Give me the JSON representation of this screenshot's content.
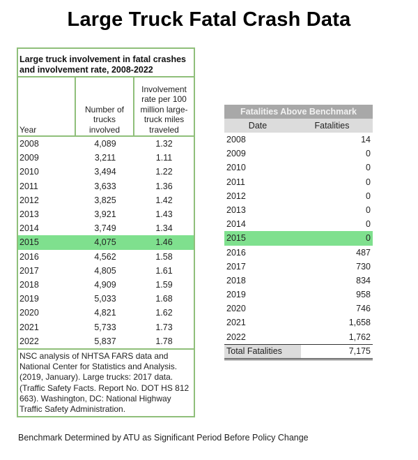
{
  "title": "Large Truck Fatal Crash Data",
  "left_table": {
    "caption": "Large truck involvement in fatal crashes and involvement rate, 2008-2022",
    "headers": {
      "year": "Year",
      "trucks": "Number of trucks involved",
      "rate": "Involvement rate per 100 million large-truck miles traveled"
    },
    "highlight_year": "2015",
    "highlight_color": "#7fe08e",
    "border_color": "#8fbf7a",
    "rows": [
      {
        "year": "2008",
        "trucks": "4,089",
        "rate": "1.32"
      },
      {
        "year": "2009",
        "trucks": "3,211",
        "rate": "1.11"
      },
      {
        "year": "2010",
        "trucks": "3,494",
        "rate": "1.22"
      },
      {
        "year": "2011",
        "trucks": "3,633",
        "rate": "1.36"
      },
      {
        "year": "2012",
        "trucks": "3,825",
        "rate": "1.42"
      },
      {
        "year": "2013",
        "trucks": "3,921",
        "rate": "1.43"
      },
      {
        "year": "2014",
        "trucks": "3,749",
        "rate": "1.34"
      },
      {
        "year": "2015",
        "trucks": "4,075",
        "rate": "1.46"
      },
      {
        "year": "2016",
        "trucks": "4,562",
        "rate": "1.58"
      },
      {
        "year": "2017",
        "trucks": "4,805",
        "rate": "1.61"
      },
      {
        "year": "2018",
        "trucks": "4,909",
        "rate": "1.59"
      },
      {
        "year": "2019",
        "trucks": "5,033",
        "rate": "1.68"
      },
      {
        "year": "2020",
        "trucks": "4,821",
        "rate": "1.62"
      },
      {
        "year": "2021",
        "trucks": "5,733",
        "rate": "1.73"
      },
      {
        "year": "2022",
        "trucks": "5,837",
        "rate": "1.78"
      }
    ],
    "source": "NSC analysis of NHTSA FARS data and National Center for Statistics and Analysis. (2019, January). Large trucks: 2017 data. (Traffic Safety Facts. Report No. DOT HS 812 663). Washington, DC: National Highway Traffic Safety Administration."
  },
  "right_table": {
    "title": "Fatalities Above Benchmark",
    "headers": {
      "date": "Date",
      "fatalities": "Fatalities"
    },
    "highlight_year": "2015",
    "rows": [
      {
        "date": "2008",
        "fatalities": "14"
      },
      {
        "date": "2009",
        "fatalities": "0"
      },
      {
        "date": "2010",
        "fatalities": "0"
      },
      {
        "date": "2011",
        "fatalities": "0"
      },
      {
        "date": "2012",
        "fatalities": "0"
      },
      {
        "date": "2013",
        "fatalities": "0"
      },
      {
        "date": "2014",
        "fatalities": "0"
      },
      {
        "date": "2015",
        "fatalities": "0"
      },
      {
        "date": "2016",
        "fatalities": "487"
      },
      {
        "date": "2017",
        "fatalities": "730"
      },
      {
        "date": "2018",
        "fatalities": "834"
      },
      {
        "date": "2019",
        "fatalities": "958"
      },
      {
        "date": "2020",
        "fatalities": "746"
      },
      {
        "date": "2021",
        "fatalities": "1,658"
      },
      {
        "date": "2022",
        "fatalities": "1,762"
      }
    ],
    "total_label": "Total Fatalities",
    "total_value": "7,175"
  },
  "footnote": "Benchmark Determined by ATU as Significant Period Before Policy Change"
}
